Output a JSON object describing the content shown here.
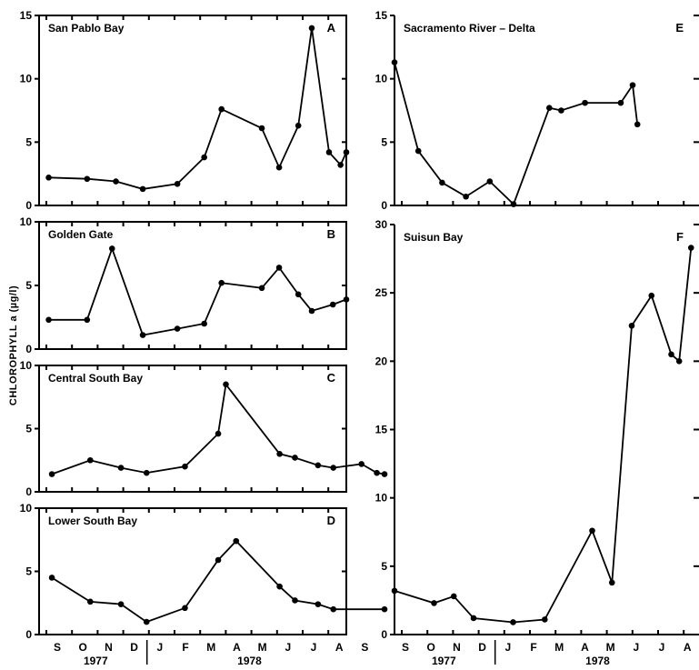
{
  "ylabel": "CHLOROPHYLL a (µg/l)",
  "months": [
    "S",
    "O",
    "N",
    "D",
    "J",
    "F",
    "M",
    "A",
    "M",
    "J",
    "J",
    "A",
    "S"
  ],
  "years": [
    "1977",
    "1978"
  ],
  "chart_data": [
    {
      "type": "line",
      "letter": "A",
      "title": "San Pablo Bay",
      "ylim": [
        0,
        15
      ],
      "yticks": [
        0,
        5,
        10,
        15
      ],
      "x": [
        0.25,
        1.25,
        2.0,
        2.7,
        3.6,
        4.3,
        4.75,
        5.8,
        6.25,
        6.75,
        7.1,
        7.55,
        7.85,
        8.0
      ],
      "y": [
        2.2,
        2.1,
        1.9,
        1.3,
        1.7,
        3.8,
        7.6,
        6.1,
        3.0,
        6.3,
        14.0,
        4.2,
        3.2,
        4.2
      ]
    },
    {
      "type": "line",
      "letter": "B",
      "title": "Golden Gate",
      "ylim": [
        0,
        10
      ],
      "yticks": [
        0,
        5,
        10
      ],
      "x": [
        0.25,
        1.25,
        1.9,
        2.7,
        3.6,
        4.3,
        4.75,
        5.8,
        6.25,
        6.75,
        7.1,
        7.65,
        8.0
      ],
      "y": [
        2.3,
        2.3,
        7.9,
        1.1,
        1.6,
        2.0,
        5.2,
        4.8,
        6.4,
        4.3,
        3.0,
        3.5,
        3.9
      ]
    },
    {
      "type": "line",
      "letter": "C",
      "title": "Central South Bay",
      "ylim": [
        0,
        10
      ],
      "yticks": [
        0,
        5,
        10
      ],
      "x": [
        0.25,
        1.0,
        1.6,
        2.1,
        2.85,
        3.5,
        3.65,
        4.7,
        5.0,
        5.45,
        5.75,
        6.3,
        6.6,
        6.75
      ],
      "y": [
        1.4,
        2.5,
        1.9,
        1.5,
        2.0,
        4.6,
        8.5,
        3.0,
        2.7,
        2.1,
        1.9,
        2.2,
        1.5,
        1.4
      ]
    },
    {
      "type": "line",
      "letter": "D",
      "title": "Lower South Bay",
      "ylim": [
        0,
        10
      ],
      "yticks": [
        0,
        5,
        10
      ],
      "x": [
        0.25,
        1.0,
        1.6,
        2.1,
        2.85,
        3.5,
        3.85,
        4.7,
        5.0,
        5.45,
        5.75,
        6.75
      ],
      "y": [
        4.5,
        2.6,
        2.4,
        1.0,
        2.1,
        5.9,
        7.4,
        3.8,
        2.7,
        2.4,
        2.0,
        2.0
      ]
    },
    {
      "type": "line",
      "letter": "E",
      "title": "Sacramento River – Delta",
      "ylim": [
        0,
        15
      ],
      "yticks": [
        0,
        5,
        10,
        15
      ],
      "x": [
        0.0,
        1.0,
        2.0,
        3.0,
        4.0,
        5.0,
        6.5,
        7.0,
        8.0,
        9.5,
        10.0,
        10.2
      ],
      "y": [
        11.3,
        4.3,
        1.8,
        0.7,
        1.9,
        0.1,
        7.7,
        7.5,
        8.1,
        8.1,
        9.5,
        6.4
      ]
    },
    {
      "type": "line",
      "letter": "F",
      "title": "Suisun Bay",
      "ylim": [
        0,
        30
      ],
      "yticks": [
        0,
        5,
        10,
        15,
        20,
        25,
        30
      ],
      "x": [
        0.0,
        1.0,
        1.5,
        2.0,
        3.0,
        3.8,
        5.0,
        5.5,
        6.0,
        6.5,
        7.0,
        7.2,
        7.5
      ],
      "y": [
        3.2,
        2.3,
        2.8,
        1.2,
        0.9,
        1.1,
        7.6,
        3.8,
        22.6,
        24.8,
        20.5,
        20.0,
        28.3
      ]
    }
  ]
}
